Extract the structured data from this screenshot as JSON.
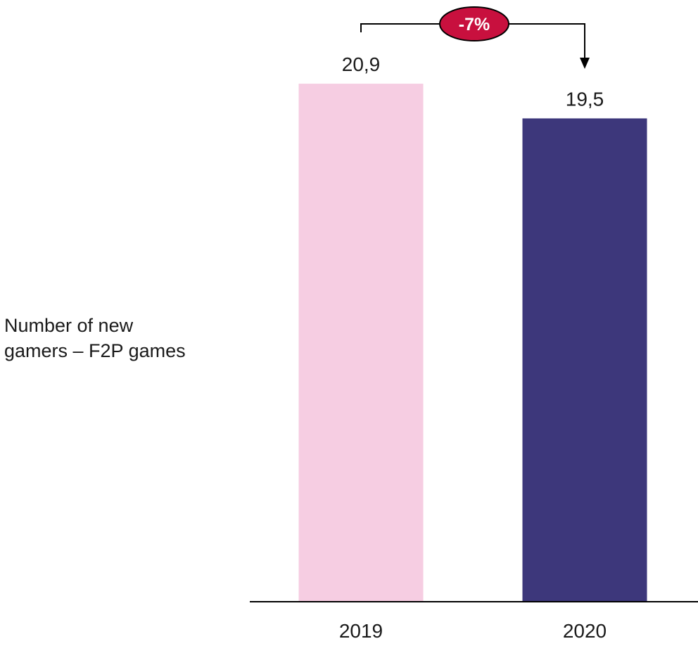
{
  "chart_data": {
    "type": "bar",
    "categories": [
      "2019",
      "2020"
    ],
    "values": [
      20.9,
      19.5
    ],
    "value_labels": [
      "20,9",
      "19,5"
    ],
    "ylabel_line1": "Number of new",
    "ylabel_line2": "gamers – F2P games",
    "change_label": "-7%",
    "colors": {
      "bar_2019": "#f6cde2",
      "bar_2020": "#3d377b",
      "badge": "#c8103e",
      "axis": "#000000"
    }
  }
}
